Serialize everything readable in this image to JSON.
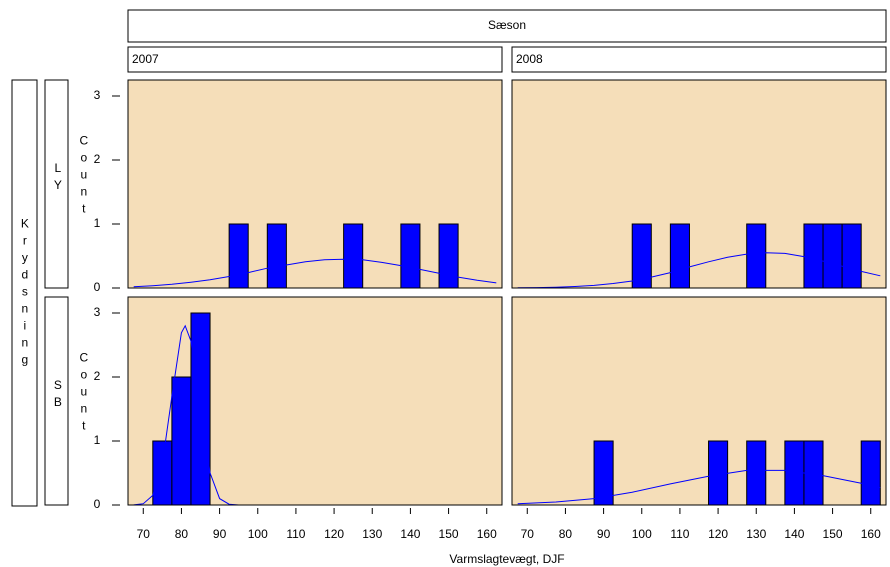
{
  "title": "Sæson",
  "row_title": "Krydsning",
  "columns": [
    "2007",
    "2008"
  ],
  "rows": [
    "LY",
    "SB"
  ],
  "xlabel": "Varmslagtevægt, DJF",
  "ylabel": "Count",
  "panel_background": "#f5deb9",
  "xlim": [
    66,
    164
  ],
  "xticks": [
    70,
    80,
    90,
    100,
    110,
    120,
    130,
    140,
    150,
    160
  ],
  "ylim": [
    0,
    3.25
  ],
  "yticks": [
    0,
    1,
    2,
    3
  ],
  "chart_data": [
    {
      "type": "histogram",
      "color": "#0000ff",
      "bins": [
        67.5,
        72.5,
        77.5,
        82.5,
        87.5,
        92.5,
        97.5,
        102.5,
        107.5,
        112.5,
        117.5,
        122.5,
        127.5,
        132.5,
        137.5,
        142.5,
        147.5,
        152.5,
        157.5,
        162.5
      ],
      "values": [
        0,
        0,
        0,
        0,
        0,
        1,
        0,
        1,
        0,
        0,
        0,
        1,
        0,
        0,
        1,
        0,
        1,
        0,
        0
      ],
      "density": {
        "x": [
          67.5,
          72.5,
          77.5,
          82.5,
          87.5,
          92.5,
          97.5,
          102.5,
          107.5,
          112.5,
          117.5,
          122.5,
          127.5,
          132.5,
          137.5,
          142.5,
          147.5,
          152.5,
          157.5,
          162.5
        ],
        "y": [
          0.021,
          0.036,
          0.058,
          0.09,
          0.13,
          0.18,
          0.24,
          0.31,
          0.36,
          0.41,
          0.44,
          0.45,
          0.44,
          0.4,
          0.35,
          0.29,
          0.23,
          0.17,
          0.12,
          0.08
        ]
      }
    },
    {
      "type": "histogram",
      "color": "#0000ff",
      "bins": [
        67.5,
        72.5,
        77.5,
        82.5,
        87.5,
        92.5,
        97.5,
        102.5,
        107.5,
        112.5,
        117.5,
        122.5,
        127.5,
        132.5,
        137.5,
        142.5,
        147.5,
        152.5,
        157.5,
        162.5
      ],
      "values": [
        0,
        0,
        0,
        0,
        0,
        0,
        1,
        0,
        1,
        0,
        0,
        0,
        1,
        0,
        0,
        1,
        1,
        1,
        0
      ],
      "density": {
        "x": [
          67.5,
          72.5,
          77.5,
          82.5,
          87.5,
          92.5,
          97.5,
          102.5,
          107.5,
          112.5,
          117.5,
          122.5,
          127.5,
          132.5,
          137.5,
          142.5,
          147.5,
          152.5,
          157.5,
          162.5
        ],
        "y": [
          0.003,
          0.006,
          0.012,
          0.023,
          0.041,
          0.071,
          0.11,
          0.17,
          0.24,
          0.33,
          0.41,
          0.48,
          0.53,
          0.55,
          0.54,
          0.49,
          0.42,
          0.34,
          0.26,
          0.19
        ]
      }
    },
    {
      "type": "histogram",
      "color": "#0000ff",
      "bins": [
        67.5,
        72.5,
        77.5,
        82.5,
        87.5,
        92.5,
        97.5,
        102.5,
        107.5,
        112.5,
        117.5,
        122.5,
        127.5,
        132.5,
        137.5,
        142.5,
        147.5,
        152.5,
        157.5,
        162.5
      ],
      "values": [
        0,
        1,
        2,
        3,
        0,
        0,
        0,
        0,
        0,
        0,
        0,
        0,
        0,
        0,
        0,
        0,
        0,
        0,
        0
      ],
      "density": {
        "x": [
          67.5,
          70,
          72.5,
          75,
          77.5,
          80,
          81,
          82.5,
          85,
          87.5,
          90,
          92.5,
          95,
          162.5
        ],
        "y": [
          0.002,
          0.02,
          0.15,
          0.64,
          1.7,
          2.69,
          2.8,
          2.56,
          1.46,
          0.5,
          0.1,
          0.013,
          0,
          0
        ]
      }
    },
    {
      "type": "histogram",
      "color": "#0000ff",
      "bins": [
        67.5,
        72.5,
        77.5,
        82.5,
        87.5,
        92.5,
        97.5,
        102.5,
        107.5,
        112.5,
        117.5,
        122.5,
        127.5,
        132.5,
        137.5,
        142.5,
        147.5,
        152.5,
        157.5,
        162.5
      ],
      "values": [
        0,
        0,
        0,
        0,
        1,
        0,
        0,
        0,
        0,
        0,
        1,
        0,
        1,
        0,
        1,
        1,
        0,
        0,
        1
      ],
      "density": {
        "x": [
          67.5,
          77.5,
          87.5,
          97.5,
          107.5,
          117.5,
          127.5,
          137.5,
          147.5,
          157.5,
          162.5
        ],
        "y": [
          0.018,
          0.047,
          0.1,
          0.2,
          0.33,
          0.45,
          0.54,
          0.54,
          0.46,
          0.34,
          0.27
        ]
      }
    }
  ]
}
